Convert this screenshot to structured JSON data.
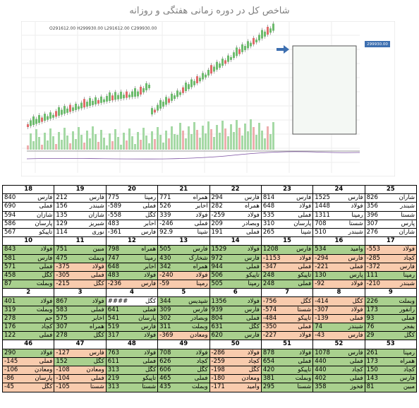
{
  "title": "شاخص کل در دوره زمانی هفتگی و روزانه",
  "chart_panel": {
    "header": "O291612.00 H299930.00 L291612.00 C299930.00",
    "price_label": "299930.00"
  },
  "table": {
    "groups": [
      {
        "headers": [
          18,
          19,
          20,
          21,
          22,
          23,
          24,
          25
        ],
        "rows": [
          [
            [
              "فارس",
              840
            ],
            [
              "فارس",
              212
            ],
            [
              "رمپنا",
              775
            ],
            [
              "همراه",
              771
            ],
            [
              "فارس",
              294
            ],
            [
              "فارس",
              814
            ],
            [
              "فارس",
              1525
            ],
            [
              "شاران",
              826
            ]
          ],
          [
            [
              "فملی",
              690
            ],
            [
              "شبندر",
              156
            ],
            [
              "فملی",
              -589
            ],
            [
              "اخابر",
              526
            ],
            [
              "همراه",
              282
            ],
            [
              "فولاد",
              648
            ],
            [
              "فولاد",
              1448
            ],
            [
              "شبندر",
              356
            ]
          ],
          [
            [
              "شازان",
              594
            ],
            [
              "شازان",
              135
            ],
            [
              "کگل",
              -558
            ],
            [
              "فولاد",
              339
            ],
            [
              "فولاد",
              -259
            ],
            [
              "فملی",
              535
            ],
            [
              "رمپنا",
              1311
            ],
            [
              "شستا",
              396
            ]
          ],
          [
            [
              "پارسان",
              586
            ],
            [
              "شبریز",
              129
            ],
            [
              "اخابر",
              483
            ],
            [
              "فملی",
              -246
            ],
            [
              "وبصادر",
              209
            ],
            [
              "پارسان",
              310
            ],
            [
              "شستا",
              708
            ],
            [
              "پارس",
              307
            ]
          ],
          [
            [
              "تاپیکو",
              567
            ],
            [
              "نوری",
              114
            ],
            [
              "فارس",
              -361
            ],
            [
              "شپنا",
              92.9
            ],
            [
              "فملی",
              191
            ],
            [
              "شپنا",
              265
            ],
            [
              "شبندر",
              510
            ],
            [
              "شاران",
              276
            ]
          ]
        ]
      },
      {
        "headers": [
          10,
          11,
          12,
          13,
          14,
          15,
          16,
          17
        ],
        "rows": [
          [
            [
              "فولاد",
              843
            ],
            [
              "مبین",
              751
            ],
            [
              "همراه",
              798
            ],
            [
              "فارس",
              505
            ],
            [
              "فولاد",
              1529
            ],
            [
              "فارس",
              1208
            ],
            [
              "وامید",
              534
            ],
            [
              "فولاد",
              -553
            ]
          ],
          [
            [
              "فارس",
              581
            ],
            [
              "وبملت",
              475
            ],
            [
              "رمپنا",
              747
            ],
            [
              "شخارک",
              430
            ],
            [
              "فارس",
              972
            ],
            [
              "فولاد",
              -1153
            ],
            [
              "فارس",
              -294
            ],
            [
              "کچاد",
              -285
            ]
          ],
          [
            [
              "فملی",
              571
            ],
            [
              "فولاد",
              -375
            ],
            [
              "اخابر",
              648
            ],
            [
              "همراه",
              342
            ],
            [
              "فملی",
              944
            ],
            [
              "فملی",
              -347
            ],
            [
              "فملی",
              -221
            ],
            [
              "فارس",
              -372
            ]
          ],
          [
            [
              "کگل",
              458
            ],
            [
              "فملی",
              -305
            ],
            [
              "فولاد",
              483
            ],
            [
              "فولاد",
              -240
            ],
            [
              "تاپیکو",
              506
            ],
            [
              "تاپیکو",
              248
            ],
            [
              "پارس",
              130
            ],
            [
              "رمپنا",
              111
            ]
          ],
          [
            [
              "وبملت",
              87
            ],
            [
              "کگل",
              -215
            ],
            [
              "فارس",
              -236
            ],
            [
              "رمپنا",
              -59
            ],
            [
              "رمپنا",
              505
            ],
            [
              "فملی",
              248
            ],
            [
              "فولاد",
              -92
            ],
            [
              "شبندر",
              -210
            ]
          ]
        ]
      },
      {
        "headers": [
          2,
          3,
          4,
          5,
          6,
          7,
          8,
          9
        ],
        "rows": [
          [
            [
              "فولاد",
              401
            ],
            [
              "فولاد",
              867
            ],
            [
              "کگل",
              "####"
            ],
            [
              "شپدیس",
              344
            ],
            [
              "فولاد",
              1356
            ],
            [
              "کگل",
              -756
            ],
            [
              "کگل",
              -414
            ],
            [
              "وبملت",
              226
            ]
          ],
          [
            [
              "وبملت",
              319
            ],
            [
              "فملی",
              583
            ],
            [
              "فملی",
              641
            ],
            [
              "فارس",
              309
            ],
            [
              "فارس",
              939
            ],
            [
              "شستا",
              -574
            ],
            [
              "فولاد",
              -307
            ],
            [
              "رانفور",
              173
            ]
          ],
          [
            [
              "جم",
              278
            ],
            [
              "اخابر",
              575
            ],
            [
              "پارسان",
              541
            ],
            [
              "وبصادر",
              302
            ],
            [
              "فملی",
              804
            ],
            [
              "تاپیکو",
              -484
            ],
            [
              "فملی",
              -139
            ],
            [
              "فملی",
              93
            ]
          ],
          [
            [
              "کچاد",
              176
            ],
            [
              "همراه",
              307
            ],
            [
              "فارس",
              519
            ],
            [
              "وبملت",
              311
            ],
            [
              "کگل",
              631
            ],
            [
              "فملی",
              -350
            ],
            [
              "شبندر",
              74
            ],
            [
              "بفجر",
              76
            ]
          ],
          [
            [
              "فملی",
              122
            ],
            [
              "کگل",
              278
            ],
            [
              "فولاد",
              317
            ],
            [
              "ومعادن",
              -369
            ],
            [
              "فارس",
              620
            ],
            [
              "فولاد",
              -227
            ],
            [
              "فارس",
              -43
            ],
            [
              "کگل",
              29
            ]
          ]
        ]
      },
      {
        "headers": [
          46,
          47,
          48,
          49,
          50,
          51,
          52,
          53
        ],
        "rows": [
          [
            [
              "فولاد",
              290
            ],
            [
              "فارس",
              -127
            ],
            [
              "فولاد",
              763
            ],
            [
              "فولاد",
              708
            ],
            [
              "فولاد",
              -286
            ],
            [
              "فولاد",
              878
            ],
            [
              "فارس",
              1078
            ],
            [
              "رمپنا",
              261
            ]
          ],
          [
            [
              "فملی",
              -145
            ],
            [
              "کگل",
              152
            ],
            [
              "فملی",
              611
            ],
            [
              "کچاد",
              626
            ],
            [
              "کچاد",
              -259
            ],
            [
              "فملی",
              654
            ],
            [
              "فملی",
              440
            ],
            [
              "همراه",
              173
            ]
          ],
          [
            [
              "ومعادن",
              -106
            ],
            [
              "ومعادن",
              -108
            ],
            [
              "کگل",
              313
            ],
            [
              "کگل",
              606
            ],
            [
              "کگل",
              -198
            ],
            [
              "تاپیکو",
              420
            ],
            [
              "کچاد",
              440
            ],
            [
              "کچاد",
              150
            ]
          ],
          [
            [
              "پارسان",
              -86
            ],
            [
              "فملی",
              -104
            ],
            [
              "تاپیکو",
              219
            ],
            [
              "فملی",
              465
            ],
            [
              "ومعادن",
              -180
            ],
            [
              "وبملت",
              381
            ],
            [
              "فملی",
              402
            ],
            [
              "فارس",
              143
            ]
          ],
          [
            [
              "کگل",
              -45
            ],
            [
              "شستا",
              -105
            ],
            [
              "شستا",
              313
            ],
            [
              "وبملت",
              435
            ],
            [
              "وامید",
              -171
            ],
            [
              "شستا",
              295
            ],
            [
              "فخوز",
              358
            ],
            [
              "مبین",
              81
            ]
          ]
        ]
      }
    ]
  }
}
